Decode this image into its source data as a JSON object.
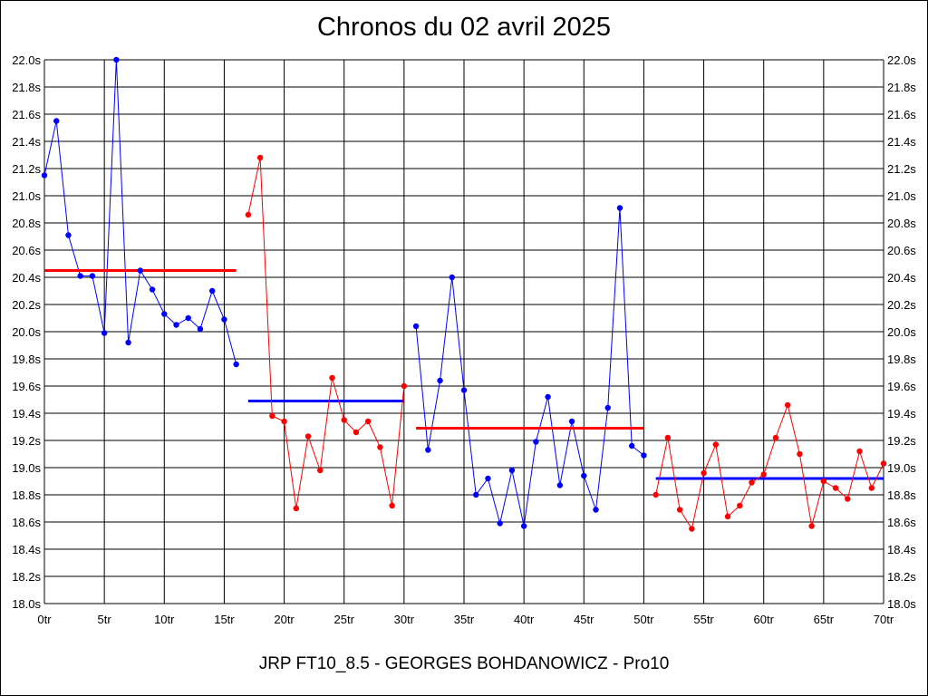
{
  "chart_data": {
    "type": "line",
    "title": "Chronos du 02 avril 2025",
    "footer": "JRP FT10_8.5 - GEORGES BOHDANOWICZ - Pro10",
    "xlim": [
      0,
      70
    ],
    "ylim": [
      18.0,
      22.0
    ],
    "x_ticks": [
      0,
      5,
      10,
      15,
      20,
      25,
      30,
      35,
      40,
      45,
      50,
      55,
      60,
      65,
      70
    ],
    "x_tick_labels": [
      "0tr",
      "5tr",
      "10tr",
      "15tr",
      "20tr",
      "25tr",
      "30tr",
      "35tr",
      "40tr",
      "45tr",
      "50tr",
      "55tr",
      "60tr",
      "65tr",
      "70tr"
    ],
    "y_ticks": [
      18.0,
      18.2,
      18.4,
      18.6,
      18.8,
      19.0,
      19.2,
      19.4,
      19.6,
      19.8,
      20.0,
      20.2,
      20.4,
      20.6,
      20.8,
      21.0,
      21.2,
      21.4,
      21.6,
      21.8,
      22.0
    ],
    "y_tick_labels": [
      "18.0s",
      "18.2s",
      "18.4s",
      "18.6s",
      "18.8s",
      "19.0s",
      "19.2s",
      "19.4s",
      "19.6s",
      "19.8s",
      "20.0s",
      "20.2s",
      "20.4s",
      "20.6s",
      "20.8s",
      "21.0s",
      "21.2s",
      "21.4s",
      "21.6s",
      "21.8s",
      "22.0s"
    ],
    "grid": true,
    "y_axis_labels_both_sides": true,
    "series": [
      {
        "color": "#0000ff",
        "x": [
          0,
          1,
          2,
          3,
          4,
          5,
          6,
          7,
          8,
          9,
          10,
          11,
          12,
          13,
          14,
          15,
          16
        ],
        "y": [
          21.15,
          21.55,
          20.71,
          20.41,
          20.41,
          19.99,
          22.0,
          19.92,
          20.45,
          20.31,
          20.13,
          20.05,
          20.1,
          20.02,
          20.3,
          20.09,
          19.76
        ],
        "average": 19.49,
        "average_color": "#0000ff",
        "average_x": [
          17,
          30
        ]
      },
      {
        "color": "#ff0000",
        "x": [
          17,
          18,
          19,
          20,
          21,
          22,
          23,
          24,
          25,
          26,
          27,
          28,
          29,
          30
        ],
        "y": [
          20.86,
          21.28,
          19.38,
          19.34,
          18.7,
          19.23,
          18.98,
          19.66,
          19.35,
          19.26,
          19.34,
          19.15,
          18.72,
          19.6
        ],
        "average": 20.45,
        "average_color": "#ff0000",
        "average_x": [
          0,
          16
        ]
      },
      {
        "color": "#0000ff",
        "x": [
          31,
          32,
          33,
          34,
          35,
          36,
          37,
          38,
          39,
          40,
          41,
          42,
          43,
          44,
          45,
          46,
          47,
          48,
          49,
          50
        ],
        "y": [
          20.04,
          19.13,
          19.64,
          20.4,
          19.57,
          18.8,
          18.92,
          18.59,
          18.98,
          18.57,
          19.19,
          19.52,
          18.87,
          19.34,
          18.94,
          18.69,
          19.44,
          20.91,
          19.16,
          19.09
        ],
        "average": 18.92,
        "average_color": "#0000ff",
        "average_x": [
          51,
          70
        ]
      },
      {
        "color": "#ff0000",
        "x": [
          51,
          52,
          53,
          54,
          55,
          56,
          57,
          58,
          59,
          60,
          61,
          62,
          63,
          64,
          65,
          66,
          67,
          68,
          69,
          70
        ],
        "y": [
          18.8,
          19.22,
          18.69,
          18.55,
          18.96,
          19.17,
          18.64,
          18.72,
          18.89,
          18.95,
          19.22,
          19.46,
          19.1,
          18.57,
          18.9,
          18.85,
          18.77,
          19.12,
          18.85,
          19.03
        ],
        "average": 19.29,
        "average_color": "#ff0000",
        "average_x": [
          31,
          50
        ]
      }
    ]
  }
}
